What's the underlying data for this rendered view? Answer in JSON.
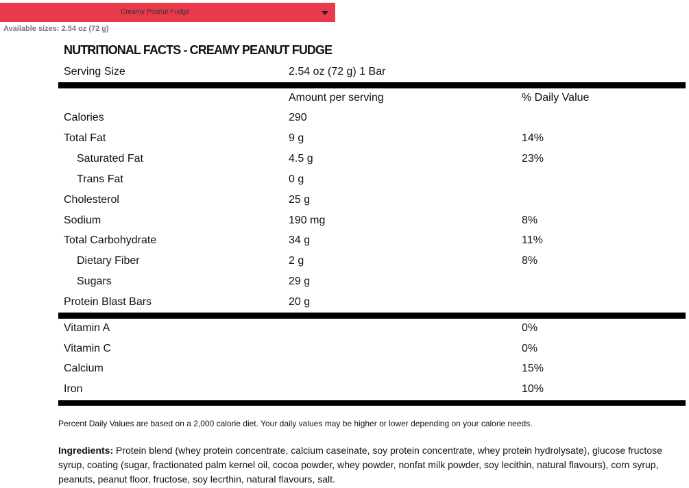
{
  "dropdown": {
    "selected": "Creamy Peanut Fudge"
  },
  "available_sizes": {
    "label": "Available sizes:",
    "value": "2.54 oz (72 g)"
  },
  "facts": {
    "title": "NUTRITIONAL FACTS - CREAMY PEANUT FUDGE",
    "serving": {
      "label": "Serving Size",
      "value": "2.54 oz (72 g) 1 Bar"
    },
    "header": {
      "amount": "Amount per serving",
      "dv": "% Daily Value"
    },
    "nutrients": [
      {
        "label": "Calories",
        "amount": "290"
      },
      {
        "label": "Total Fat",
        "amount": "9 g",
        "dv": "14%"
      },
      {
        "label": "Saturated Fat",
        "amount": "4.5 g",
        "dv": "23%",
        "indent": true
      },
      {
        "label": "Trans Fat",
        "amount": "0 g",
        "indent": true
      },
      {
        "label": "Cholesterol",
        "amount": "25 g"
      },
      {
        "label": "Sodium",
        "amount": "190 mg",
        "dv": "8%"
      },
      {
        "label": "Total Carbohydrate",
        "amount": "34 g",
        "dv": "11%"
      },
      {
        "label": "Dietary Fiber",
        "amount": "2 g",
        "dv": "8%",
        "indent": true
      },
      {
        "label": "Sugars",
        "amount": "29 g",
        "indent": true
      },
      {
        "label": "Protein Blast Bars",
        "amount": "20 g"
      }
    ],
    "vitamins": [
      {
        "label": "Vitamin A",
        "dv": "0%"
      },
      {
        "label": "Vitamin C",
        "dv": "0%"
      },
      {
        "label": "Calcium",
        "dv": "15%"
      },
      {
        "label": "Iron",
        "dv": "10%"
      }
    ],
    "footnote": "Percent Daily Values are based on a 2,000 calorie diet. Your daily values may be higher or lower depending on your calorie needs."
  },
  "ingredients": {
    "label": "Ingredients:",
    "text": "Protein blend (whey protein concentrate, calcium caseinate, soy protein concentrate, whey protein hydrolysate), glucose fructose syrup, coating (sugar, fractionated palm kernel oil, cocoa powder, whey powder, nonfat milk powder, soy lecithin, natural flavours), corn syrup, peanuts, peanut floor, fructose, soy lecrthin, natural flavours, salt."
  }
}
